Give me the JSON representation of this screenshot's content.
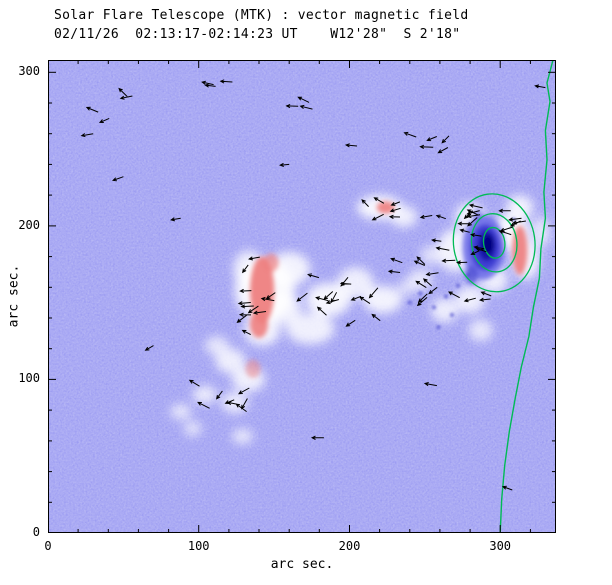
{
  "chart_data": {
    "type": "heatmap",
    "title": "Solar Flare Telescope (MTK) : vector magnetic field",
    "subtitle": "02/11/26  02:13:17-02:14:23 UT    W12'28\"  S 2'18\"",
    "xlabel": "arc sec.",
    "ylabel": "arc sec.",
    "xlim": [
      0,
      337
    ],
    "ylim": [
      0,
      308
    ],
    "xticks": [
      0,
      100,
      200,
      300
    ],
    "yticks": [
      0,
      100,
      200,
      300
    ],
    "minor_tick_step": 20,
    "colors": {
      "background": "#9d9df2",
      "cloud": "#ffffff",
      "positive_polarity": "#ee7f7f",
      "negative_polarity_outer": "#6a6ae8",
      "negative_polarity_mid": "#3a3ad0",
      "negative_polarity_deep": "#1515a8",
      "negative_polarity_core": "#000078",
      "contour": "#00bb55",
      "arrow": "#000000",
      "axis": "#000000"
    },
    "white_clouds": [
      [
        144,
        158,
        20,
        20,
        0.92
      ],
      [
        160,
        172,
        14,
        11,
        0.85
      ],
      [
        186,
        152,
        15,
        11,
        0.88
      ],
      [
        204,
        163,
        12,
        10,
        0.8
      ],
      [
        222,
        152,
        13,
        9,
        0.85
      ],
      [
        174,
        133,
        16,
        10,
        0.82
      ],
      [
        142,
        132,
        12,
        10,
        0.85
      ],
      [
        156,
        146,
        12,
        10,
        0.8
      ],
      [
        133,
        172,
        10,
        12,
        0.8
      ],
      [
        121,
        112,
        10,
        8,
        0.8
      ],
      [
        133,
        100,
        11,
        8,
        0.82
      ],
      [
        104,
        90,
        8,
        6,
        0.75
      ],
      [
        88,
        79,
        7,
        5,
        0.7
      ],
      [
        96,
        68,
        6,
        5,
        0.65
      ],
      [
        129,
        63,
        7,
        5,
        0.7
      ],
      [
        124,
        85,
        9,
        7,
        0.75
      ],
      [
        112,
        122,
        8,
        6,
        0.7
      ],
      [
        220,
        212,
        15,
        8,
        0.9
      ],
      [
        236,
        206,
        9,
        7,
        0.8
      ],
      [
        270,
        184,
        12,
        14,
        0.85
      ],
      [
        280,
        206,
        10,
        9,
        0.85
      ],
      [
        307,
        196,
        12,
        12,
        0.9
      ],
      [
        317,
        178,
        9,
        13,
        0.85
      ],
      [
        313,
        212,
        9,
        8,
        0.85
      ],
      [
        280,
        152,
        10,
        9,
        0.8
      ],
      [
        263,
        145,
        9,
        8,
        0.78
      ],
      [
        287,
        132,
        8,
        7,
        0.72
      ],
      [
        327,
        196,
        6,
        10,
        0.7
      ],
      [
        296,
        165,
        9,
        9,
        0.8
      ],
      [
        247,
        165,
        8,
        7,
        0.7
      ],
      [
        254,
        181,
        7,
        6,
        0.65
      ],
      [
        238,
        160,
        6,
        5,
        0.6
      ]
    ],
    "red_patches": [
      [
        142,
        158,
        8,
        22,
        0.95
      ],
      [
        140,
        136,
        6,
        9,
        0.9
      ],
      [
        148,
        176,
        5,
        6,
        0.7
      ],
      [
        224,
        212,
        6,
        4,
        0.9
      ],
      [
        313,
        184,
        5,
        16,
        0.92
      ],
      [
        136,
        107,
        5,
        6,
        0.5
      ]
    ],
    "blue_patches": [
      [
        289,
        186,
        14,
        21,
        "#6a6ae8",
        0.85
      ],
      [
        290,
        186,
        10,
        15,
        "#3a3ad0",
        0.9
      ],
      [
        291,
        187,
        6,
        10,
        "#1515a8",
        0.95
      ],
      [
        292,
        188,
        3.5,
        6,
        "#000078",
        0.95
      ],
      [
        281,
        168,
        4,
        6,
        "#4a4ad0",
        0.7
      ],
      [
        285,
        207,
        3,
        4,
        "#5a5ae0",
        0.6
      ]
    ],
    "blue_specks": [
      [
        256,
        147
      ],
      [
        264,
        154
      ],
      [
        272,
        161
      ],
      [
        268,
        142
      ],
      [
        279,
        168
      ],
      [
        247,
        156
      ],
      [
        309,
        204
      ],
      [
        259,
        134
      ],
      [
        240,
        150
      ]
    ],
    "green_contours": {
      "center": [
        296,
        189
      ],
      "rings": [
        [
          27,
          32,
          -8
        ],
        [
          15,
          19,
          -8
        ],
        [
          7,
          10,
          -8
        ]
      ]
    },
    "limb_line": [
      [
        335,
        308
      ],
      [
        331,
        293
      ],
      [
        333,
        281
      ],
      [
        330,
        262
      ],
      [
        331,
        243
      ],
      [
        329,
        222
      ],
      [
        330,
        205
      ],
      [
        327,
        185
      ],
      [
        326,
        166
      ],
      [
        322,
        147
      ],
      [
        319,
        128
      ],
      [
        314,
        108
      ],
      [
        310,
        88
      ],
      [
        306,
        66
      ],
      [
        303,
        44
      ],
      [
        301,
        22
      ],
      [
        300,
        0
      ]
    ],
    "vector_field": {
      "seed": 7,
      "clusters": [
        [
          277,
          182,
          26,
          30,
          26,
          185,
          40
        ],
        [
          312,
          197,
          7,
          13,
          6,
          180,
          30
        ],
        [
          143,
          155,
          13,
          26,
          12,
          185,
          50
        ],
        [
          195,
          150,
          28,
          17,
          14,
          190,
          60
        ],
        [
          222,
          209,
          14,
          7,
          6,
          170,
          45
        ],
        [
          243,
          170,
          12,
          11,
          6,
          180,
          50
        ],
        [
          115,
          95,
          22,
          17,
          8,
          200,
          60
        ],
        [
          45,
          278,
          17,
          9,
          4,
          170,
          40
        ],
        [
          115,
          292,
          10,
          6,
          3,
          160,
          40
        ],
        [
          175,
          277,
          12,
          8,
          3,
          175,
          40
        ],
        [
          252,
          258,
          14,
          8,
          5,
          185,
          45
        ]
      ],
      "singles": [
        [
          50,
          232,
          200
        ],
        [
          88,
          205,
          190
        ],
        [
          70,
          122,
          210
        ],
        [
          183,
          62,
          180
        ],
        [
          258,
          96,
          170
        ],
        [
          308,
          28,
          160
        ],
        [
          160,
          240,
          185
        ],
        [
          205,
          252,
          175
        ],
        [
          30,
          260,
          190
        ],
        [
          330,
          290,
          170
        ]
      ]
    }
  }
}
